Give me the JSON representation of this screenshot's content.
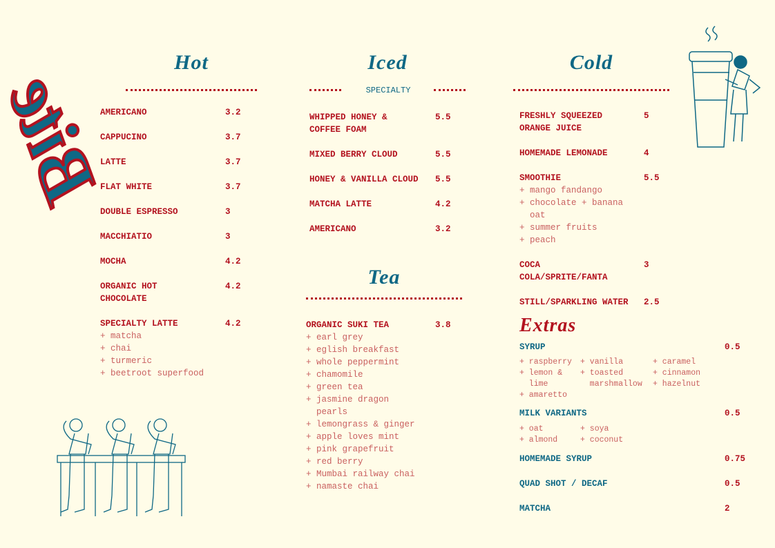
{
  "logo": "Bite",
  "colors": {
    "background": "#fffce8",
    "red": "#b3121f",
    "teal": "#0f6885",
    "light_red": "#c96060"
  },
  "hot": {
    "title": "Hot",
    "items": [
      {
        "name": "AMERICANO",
        "price": "3.2"
      },
      {
        "name": "CAPPUCINO",
        "price": "3.7"
      },
      {
        "name": "LATTE",
        "price": "3.7"
      },
      {
        "name": "FLAT WHITE",
        "price": "3.7"
      },
      {
        "name": "DOUBLE ESPRESSO",
        "price": "3"
      },
      {
        "name": "MACCHIATIO",
        "price": "3"
      },
      {
        "name": "MOCHA",
        "price": "4.2"
      },
      {
        "name": "ORGANIC HOT\nCHOCOLATE",
        "price": "4.2"
      },
      {
        "name": "SPECIALTY LATTE",
        "price": "4.2",
        "options": "+ matcha\n+ chai\n+ turmeric\n+ beetroot superfood"
      }
    ]
  },
  "iced": {
    "title": "Iced",
    "subtitle": "SPECIALTY",
    "items": [
      {
        "name": "WHIPPED HONEY &\nCOFFEE FOAM",
        "price": "5.5"
      },
      {
        "name": "MIXED BERRY CLOUD",
        "price": "5.5"
      },
      {
        "name": "HONEY & VANILLA CLOUD",
        "price": "5.5"
      },
      {
        "name": "MATCHA LATTE",
        "price": "4.2"
      },
      {
        "name": "AMERICANO",
        "price": "3.2"
      }
    ]
  },
  "tea": {
    "title": "Tea",
    "items": [
      {
        "name": "ORGANIC SUKI TEA",
        "price": "3.8",
        "options": "+ earl grey\n+ eglish breakfast\n+ whole peppermint\n+ chamomile\n+ green tea\n+ jasmine dragon\n  pearls\n+ lemongrass & ginger\n+ apple loves mint\n+ pink grapefruit\n+ red berry\n+ Mumbai railway chai\n+ namaste chai"
      }
    ]
  },
  "cold": {
    "title": "Cold",
    "items": [
      {
        "name": "FRESHLY SQUEEZED\nORANGE JUICE",
        "price": "5"
      },
      {
        "name": "HOMEMADE LEMONADE",
        "price": "4"
      },
      {
        "name": "SMOOTHIE",
        "price": "5.5",
        "options": "+ mango fandango\n+ chocolate + banana\n  oat\n+ summer fruits\n+ peach"
      },
      {
        "name": "COCA\nCOLA/SPRITE/FANTA",
        "price": "3"
      },
      {
        "name": "STILL/SPARKLING WATER",
        "price": "2.5"
      }
    ]
  },
  "extras": {
    "title": "Extras",
    "items": [
      {
        "name": "SYRUP",
        "price": "0.5",
        "options": [
          "+ raspberry\n+ lemon &\n  lime\n+ amaretto",
          "+ vanilla\n+ toasted\n  marshmallow",
          "+ caramel\n+ cinnamon\n+ hazelnut"
        ]
      },
      {
        "name": "MILK VARIANTS",
        "price": "0.5",
        "options": [
          "+ oat\n+ almond",
          "+ soya\n+ coconut"
        ]
      },
      {
        "name": "HOMEMADE SYRUP",
        "price": "0.75"
      },
      {
        "name": "QUAD SHOT / DECAF",
        "price": "0.5"
      },
      {
        "name": "MATCHA",
        "price": "2"
      }
    ]
  }
}
